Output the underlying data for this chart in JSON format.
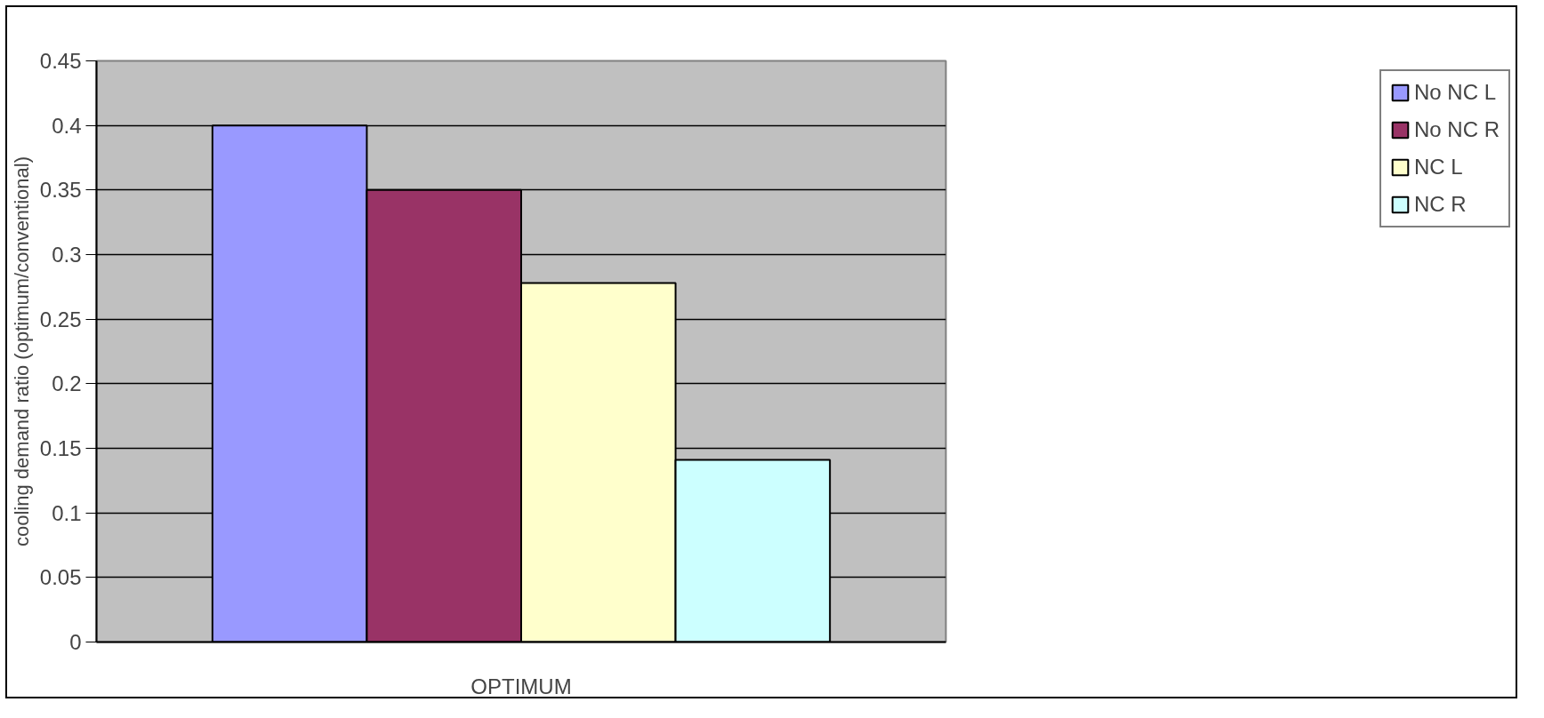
{
  "chart_data": {
    "type": "bar",
    "ylabel": "cooling demand ratio (optimum/conventional)",
    "categories": [
      "OPTIMUM"
    ],
    "series": [
      {
        "name": "No NC L",
        "color": "#9999ff",
        "values": [
          0.4
        ]
      },
      {
        "name": "No NC R",
        "color": "#993366",
        "values": [
          0.35
        ]
      },
      {
        "name": "NC L",
        "color": "#ffffcc",
        "values": [
          0.278
        ]
      },
      {
        "name": "NC R",
        "color": "#ccffff",
        "values": [
          0.141
        ]
      }
    ],
    "ylim": [
      0,
      0.45
    ],
    "yticks": [
      0,
      0.05,
      0.1,
      0.15,
      0.2,
      0.25,
      0.3,
      0.35,
      0.4,
      0.45
    ],
    "grid": "y",
    "legend": "right"
  }
}
